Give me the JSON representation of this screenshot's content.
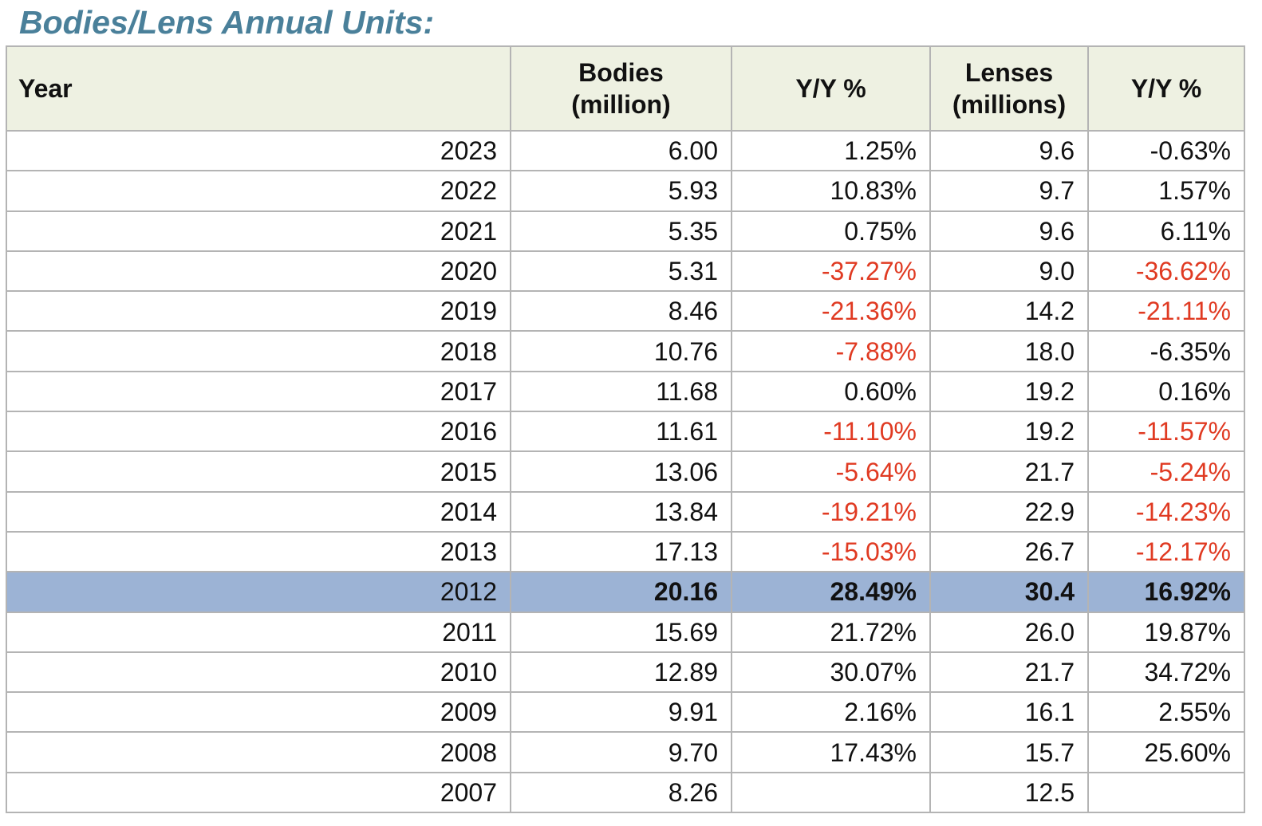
{
  "title": "Bodies/Lens Annual Units:",
  "table": {
    "columns": [
      "year",
      "bodies",
      "bodies_yy",
      "lenses",
      "lenses_yy"
    ],
    "header": [
      [
        "Year"
      ],
      [
        "Bodies",
        "(million)"
      ],
      [
        "Y/Y %"
      ],
      [
        "Lenses",
        "(millions)"
      ],
      [
        "Y/Y %"
      ]
    ],
    "header_color": "#eef1e2",
    "highlight_color": "#9cb3d5",
    "negative_color": "#e03a22",
    "rows": [
      {
        "year": "2023",
        "bodies": "6.00",
        "bodies_yy": "1.25%",
        "lenses": "9.6",
        "lenses_yy": "-0.63%"
      },
      {
        "year": "2022",
        "bodies": "5.93",
        "bodies_yy": "10.83%",
        "lenses": "9.7",
        "lenses_yy": "1.57%"
      },
      {
        "year": "2021",
        "bodies": "5.35",
        "bodies_yy": "0.75%",
        "lenses": "9.6",
        "lenses_yy": "6.11%"
      },
      {
        "year": "2020",
        "bodies": "5.31",
        "bodies_yy": "-37.27%",
        "lenses": "9.0",
        "lenses_yy": "-36.62%",
        "red": [
          "bodies_yy",
          "lenses_yy"
        ]
      },
      {
        "year": "2019",
        "bodies": "8.46",
        "bodies_yy": "-21.36%",
        "lenses": "14.2",
        "lenses_yy": "-21.11%",
        "red": [
          "bodies_yy",
          "lenses_yy"
        ]
      },
      {
        "year": "2018",
        "bodies": "10.76",
        "bodies_yy": "-7.88%",
        "lenses": "18.0",
        "lenses_yy": "-6.35%",
        "red": [
          "bodies_yy"
        ]
      },
      {
        "year": "2017",
        "bodies": "11.68",
        "bodies_yy": "0.60%",
        "lenses": "19.2",
        "lenses_yy": "0.16%"
      },
      {
        "year": "2016",
        "bodies": "11.61",
        "bodies_yy": "-11.10%",
        "lenses": "19.2",
        "lenses_yy": "-11.57%",
        "red": [
          "bodies_yy",
          "lenses_yy"
        ]
      },
      {
        "year": "2015",
        "bodies": "13.06",
        "bodies_yy": "-5.64%",
        "lenses": "21.7",
        "lenses_yy": "-5.24%",
        "red": [
          "bodies_yy",
          "lenses_yy"
        ]
      },
      {
        "year": "2014",
        "bodies": "13.84",
        "bodies_yy": "-19.21%",
        "lenses": "22.9",
        "lenses_yy": "-14.23%",
        "red": [
          "bodies_yy",
          "lenses_yy"
        ]
      },
      {
        "year": "2013",
        "bodies": "17.13",
        "bodies_yy": "-15.03%",
        "lenses": "26.7",
        "lenses_yy": "-12.17%",
        "red": [
          "bodies_yy",
          "lenses_yy"
        ]
      },
      {
        "year": "2012",
        "bodies": "20.16",
        "bodies_yy": "28.49%",
        "lenses": "30.4",
        "lenses_yy": "16.92%",
        "highlight": true
      },
      {
        "year": "2011",
        "bodies": "15.69",
        "bodies_yy": "21.72%",
        "lenses": "26.0",
        "lenses_yy": "19.87%"
      },
      {
        "year": "2010",
        "bodies": "12.89",
        "bodies_yy": "30.07%",
        "lenses": "21.7",
        "lenses_yy": "34.72%"
      },
      {
        "year": "2009",
        "bodies": "9.91",
        "bodies_yy": "2.16%",
        "lenses": "16.1",
        "lenses_yy": "2.55%"
      },
      {
        "year": "2008",
        "bodies": "9.70",
        "bodies_yy": "17.43%",
        "lenses": "15.7",
        "lenses_yy": "25.60%"
      },
      {
        "year": "2007",
        "bodies": "8.26",
        "lenses": "12.5"
      }
    ]
  }
}
